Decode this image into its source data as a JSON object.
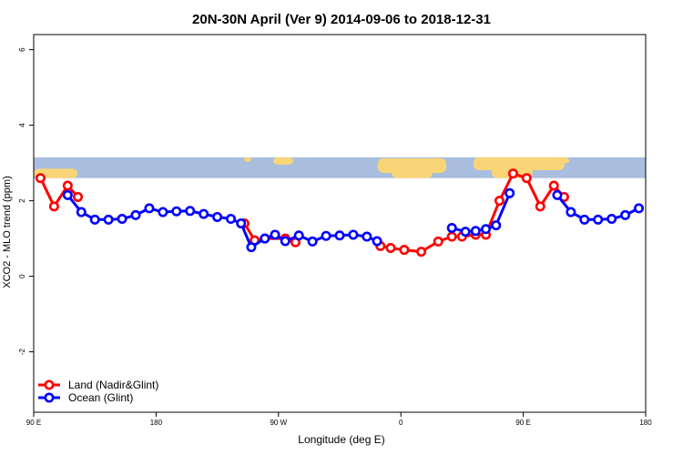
{
  "chart_data": {
    "type": "line",
    "title": "20N-30N April (Ver 9)   2014-09-06 to 2018-12-31",
    "xlabel": "Longitude (deg E)",
    "ylabel": "XCO2 - MLO trend (ppm)",
    "xlim": [
      90,
      450
    ],
    "ylim": [
      -3.6,
      6.4
    ],
    "xticks": [
      {
        "value": 90,
        "label": "90 E"
      },
      {
        "value": 180,
        "label": "180"
      },
      {
        "value": 270,
        "label": "90 W"
      },
      {
        "value": 360,
        "label": "0"
      },
      {
        "value": 450,
        "label": "90 E"
      },
      {
        "value": 540,
        "label": "180"
      }
    ],
    "yticks": [
      {
        "value": -2,
        "label": "-2"
      },
      {
        "value": 0,
        "label": "0"
      },
      {
        "value": 2,
        "label": "2"
      },
      {
        "value": 4,
        "label": "4"
      },
      {
        "value": 6,
        "label": "6"
      }
    ],
    "legend_position": "bottom-left",
    "map_strip_ylim": [
      2.6,
      3.15
    ],
    "colors": {
      "land": "#ff0000",
      "ocean": "#0000ff",
      "map_ocean": "#a9bedf",
      "map_land": "#fad577"
    },
    "series": [
      {
        "name": "Land (Nadir&Glint)",
        "color": "#ff0000",
        "points": [
          [
            95,
            2.6
          ],
          [
            105,
            1.85
          ],
          [
            115,
            2.4
          ],
          [
            122.5,
            2.1
          ],
          null,
          [
            245,
            1.4
          ],
          [
            252.5,
            0.95
          ],
          [
            260,
            1.0
          ],
          [
            275,
            1.0
          ],
          [
            282.5,
            0.9
          ],
          null,
          [
            345,
            0.8
          ],
          [
            352.5,
            0.75
          ],
          [
            362.5,
            0.7
          ],
          [
            375,
            0.65
          ],
          [
            387.5,
            0.92
          ],
          [
            397.5,
            1.05
          ],
          [
            405,
            1.05
          ],
          [
            415,
            1.1
          ],
          [
            422.5,
            1.1
          ],
          [
            432.5,
            2.0
          ],
          [
            442.5,
            2.72
          ],
          [
            452.5,
            2.6
          ],
          [
            462.5,
            1.85
          ],
          [
            472.5,
            2.4
          ],
          [
            480,
            2.1
          ]
        ]
      },
      {
        "name": "Ocean (Glint)",
        "color": "#0000ff",
        "points": [
          [
            115,
            2.15
          ],
          [
            125,
            1.7
          ],
          [
            135,
            1.5
          ],
          [
            145,
            1.5
          ],
          [
            155,
            1.52
          ],
          [
            165,
            1.62
          ],
          [
            175,
            1.8
          ],
          [
            185,
            1.7
          ],
          [
            195,
            1.72
          ],
          [
            205,
            1.73
          ],
          [
            215,
            1.65
          ],
          [
            225,
            1.57
          ],
          [
            235,
            1.52
          ],
          [
            242.5,
            1.4
          ],
          [
            250,
            0.77
          ],
          [
            260,
            1.0
          ],
          [
            267.5,
            1.1
          ],
          [
            275,
            0.93
          ],
          [
            285,
            1.08
          ],
          [
            295,
            0.92
          ],
          [
            305,
            1.07
          ],
          [
            315,
            1.08
          ],
          [
            325,
            1.1
          ],
          [
            335,
            1.05
          ],
          [
            342.5,
            0.93
          ],
          null,
          [
            397.5,
            1.28
          ],
          [
            407.5,
            1.18
          ],
          [
            415,
            1.2
          ],
          [
            422.5,
            1.25
          ],
          [
            430,
            1.35
          ],
          [
            440,
            2.2
          ],
          null,
          [
            475,
            2.15
          ],
          [
            485,
            1.7
          ],
          [
            495,
            1.5
          ],
          [
            505,
            1.5
          ],
          [
            515,
            1.52
          ],
          [
            525,
            1.62
          ],
          [
            535,
            1.8
          ]
        ]
      }
    ]
  }
}
